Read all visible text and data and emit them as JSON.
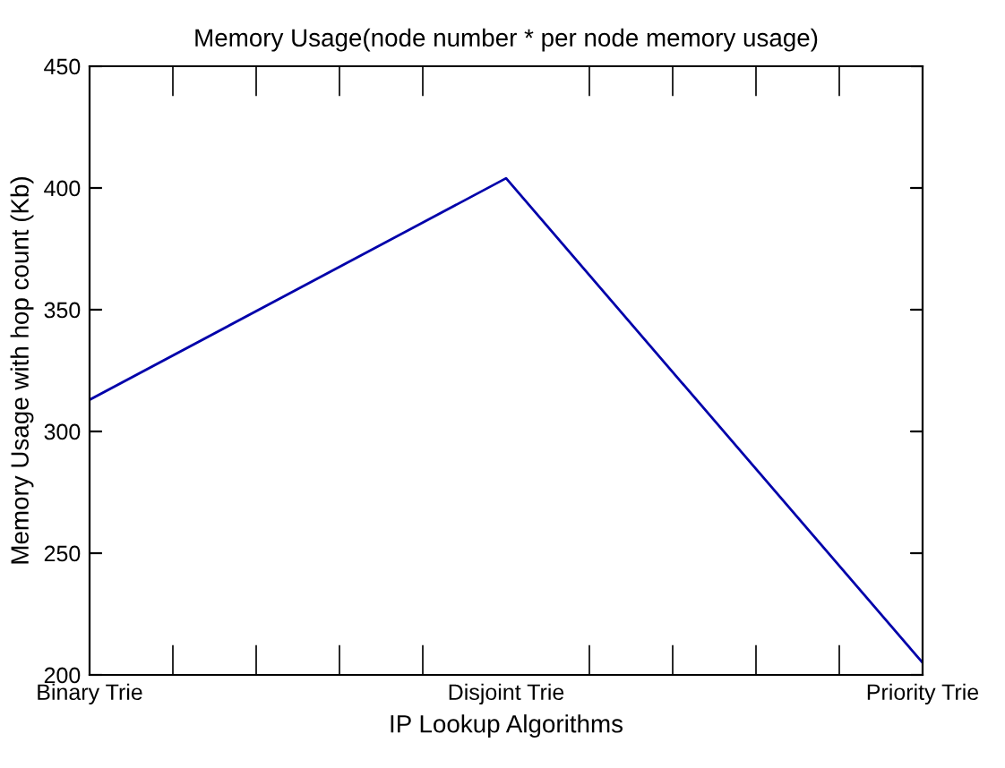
{
  "chart_data": {
    "type": "line",
    "title": "Memory Usage(node number * per node memory usage)",
    "xlabel": "IP Lookup Algorithms",
    "ylabel": "Memory Usage with hop count (Kb)",
    "categories": [
      "Binary Trie",
      "Disjoint Trie",
      "Priority Trie"
    ],
    "series": [
      {
        "color": "#0000aa",
        "values": [
          313,
          404,
          205
        ]
      }
    ],
    "ylim": [
      200,
      450
    ],
    "yticks": [
      200,
      250,
      300,
      350,
      400,
      450
    ],
    "grid": false,
    "legend": false,
    "marker": "none",
    "line_style": "solid"
  }
}
